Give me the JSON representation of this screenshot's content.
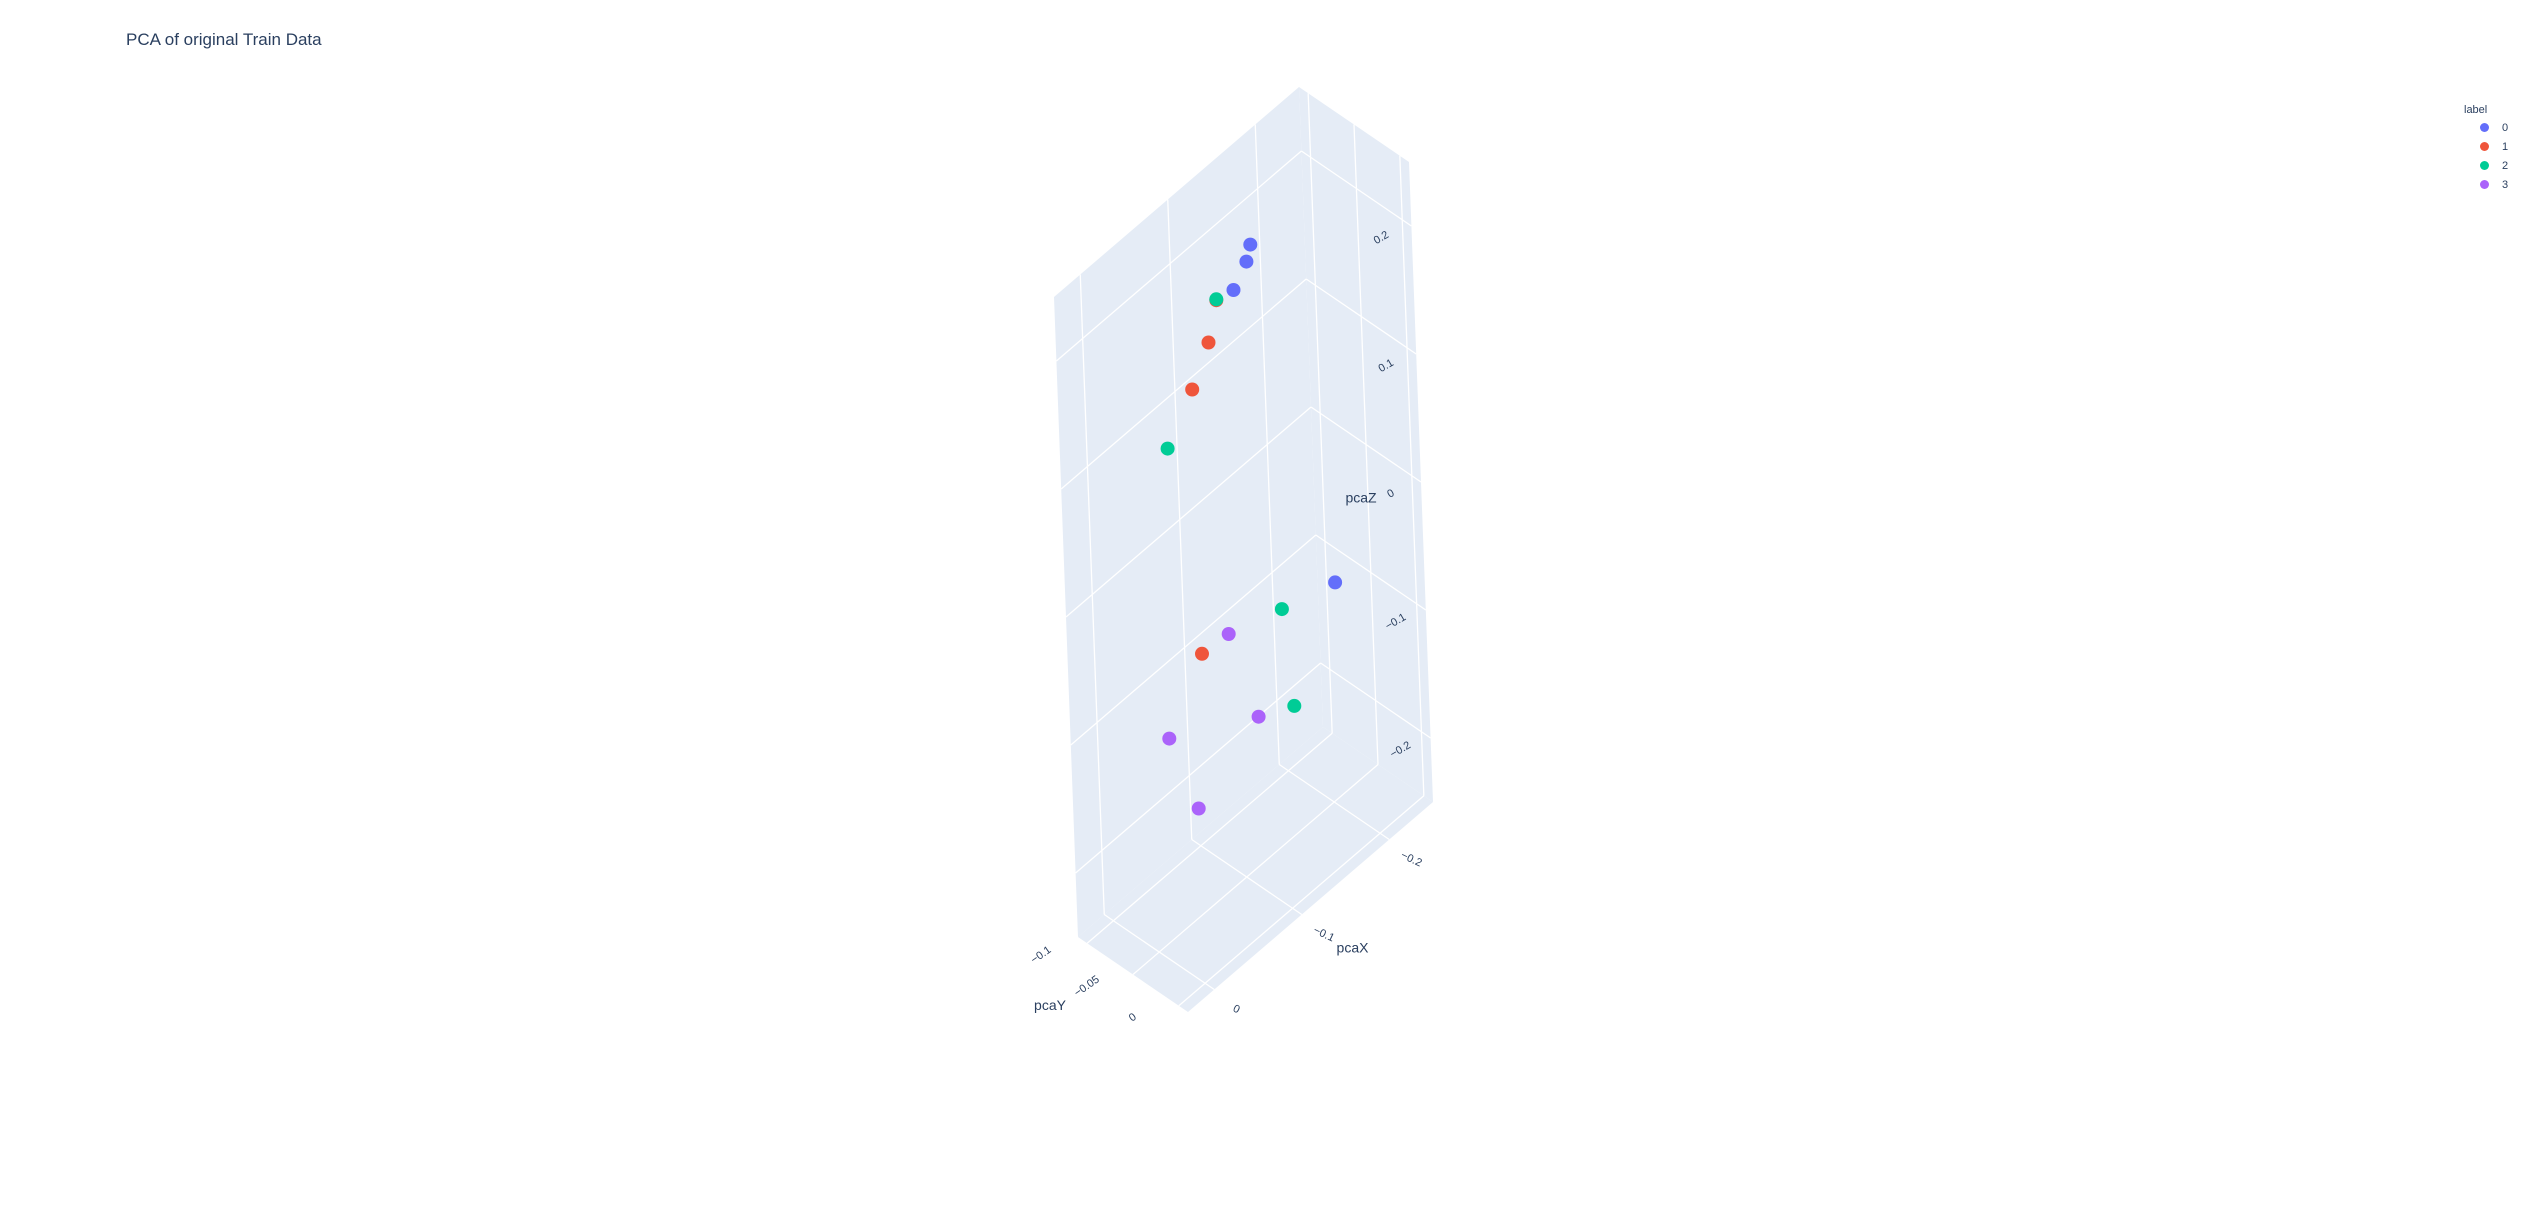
{
  "chart_data": {
    "type": "scatter3d",
    "title": "PCA of original Train Data",
    "axes": {
      "x": {
        "label": "pcaX",
        "ticks": [
          "−0.2",
          "−0.1",
          "0"
        ],
        "tick_values": [
          -0.2,
          -0.1,
          0
        ],
        "range": [
          -0.25,
          0.03
        ]
      },
      "y": {
        "label": "pcaY",
        "ticks": [
          "−0.1",
          "−0.05",
          "0"
        ],
        "tick_values": [
          -0.1,
          -0.05,
          0
        ],
        "range": [
          -0.11,
          0.01
        ]
      },
      "z": {
        "label": "pcaZ",
        "ticks": [
          "−0.2",
          "−0.1",
          "0",
          "0.1",
          "0.2"
        ],
        "tick_values": [
          -0.2,
          -0.1,
          0,
          0.1,
          0.2
        ],
        "range": [
          -0.25,
          0.25
        ]
      }
    },
    "legend": {
      "title": "label",
      "position": "top-right",
      "entries": [
        "0",
        "1",
        "2",
        "3"
      ]
    },
    "series": [
      {
        "name": "0",
        "color": "#636efa",
        "points": [
          {
            "x": -0.08,
            "y": -0.02,
            "z": 0.235
          },
          {
            "x": -0.14,
            "y": -0.065,
            "z": 0.2
          },
          {
            "x": -0.15,
            "y": -0.07,
            "z": 0.205
          },
          {
            "x": -0.22,
            "y": -0.06,
            "z": -0.095
          }
        ]
      },
      {
        "name": "1",
        "color": "#ef553b",
        "points": [
          {
            "x": -0.07,
            "y": -0.04,
            "z": 0.19
          },
          {
            "x": -0.05,
            "y": -0.04,
            "z": 0.165
          },
          {
            "x": -0.11,
            "y": -0.07,
            "z": 0.185
          },
          {
            "x": -0.03,
            "y": -0.02,
            "z": -0.02
          }
        ]
      },
      {
        "name": "2",
        "color": "#00cc96",
        "points": [
          {
            "x": -0.04,
            "y": -0.06,
            "z": 0.115
          },
          {
            "x": -0.12,
            "y": -0.08,
            "z": 0.175
          },
          {
            "x": -0.15,
            "y": -0.05,
            "z": -0.07
          },
          {
            "x": -0.14,
            "y": -0.03,
            "z": -0.13
          }
        ]
      },
      {
        "name": "3",
        "color": "#ab63fa",
        "points": [
          {
            "x": -0.1,
            "y": -0.06,
            "z": -0.065
          },
          {
            "x": -0.1,
            "y": -0.03,
            "z": -0.115
          },
          {
            "x": -0.02,
            "y": -0.05,
            "z": -0.095
          },
          {
            "x": -0.02,
            "y": -0.02,
            "z": -0.135
          }
        ]
      }
    ],
    "background_color": "#e5ecf6",
    "grid": true
  }
}
